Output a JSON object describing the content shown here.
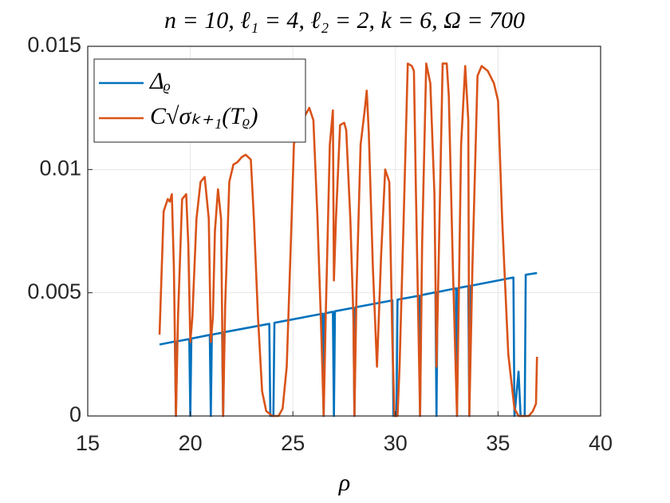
{
  "chart_data": {
    "type": "line",
    "title": "n = 10, ℓ₁ = 4, ℓ₂ = 2, k = 6, Ω = 700",
    "x_label": "ρ",
    "xlim": [
      15,
      40
    ],
    "xticks": [
      15,
      20,
      25,
      30,
      35,
      40
    ],
    "ylim": [
      0,
      0.015
    ],
    "yticks": [
      0,
      0.005,
      0.01,
      0.015
    ],
    "grid": true,
    "legend": "upper left",
    "series": [
      {
        "name": "Δᵨ",
        "color": "#0072BD",
        "x": [
          18.5,
          19.25,
          19.3,
          19.35,
          19.95,
          20.0,
          20.05,
          20.95,
          21.0,
          21.05,
          21.55,
          21.6,
          21.65,
          23.85,
          23.9,
          24.05,
          24.1,
          26.45,
          26.5,
          26.55,
          26.95,
          27.0,
          27.05,
          27.95,
          28.0,
          28.05,
          29.85,
          29.9,
          30.05,
          30.1,
          31.15,
          31.2,
          31.25,
          31.95,
          32.0,
          32.05,
          32.95,
          33.0,
          33.05,
          33.55,
          33.6,
          33.65,
          35.75,
          35.8,
          36.0,
          36.1,
          36.3,
          36.35,
          36.9
        ],
        "values": [
          0.0029,
          0.00302,
          0,
          0.00303,
          0.00312,
          0,
          0.00314,
          0.00329,
          0,
          0.0033,
          0.00338,
          0,
          0.0034,
          0.00374,
          0,
          0,
          0.00378,
          0.00415,
          0,
          0.00416,
          0.00423,
          0,
          0.00425,
          0.00439,
          0,
          0.00441,
          0.00469,
          0,
          0,
          0.00472,
          0.00488,
          0,
          0.0049,
          0.00502,
          0,
          0.00503,
          0.00518,
          0,
          0.00519,
          0.00527,
          0,
          0.00528,
          0.00562,
          0,
          0.0018,
          0,
          0,
          0.00573,
          0.0058
        ]
      },
      {
        "name": "C√σₖ₊₁(Tᵨ)",
        "color": "#D95319",
        "x": [
          18.5,
          18.7,
          18.9,
          19.0,
          19.1,
          19.2,
          19.3,
          19.4,
          19.6,
          19.8,
          19.9,
          20.0,
          20.1,
          20.3,
          20.5,
          20.7,
          20.9,
          21.0,
          21.1,
          21.2,
          21.35,
          21.5,
          21.6,
          21.7,
          21.9,
          22.1,
          22.3,
          22.5,
          22.7,
          22.95,
          23.1,
          23.3,
          23.5,
          23.7,
          24.0,
          24.3,
          24.5,
          24.7,
          24.9,
          25.05,
          25.2,
          25.4,
          25.6,
          25.8,
          26.0,
          26.2,
          26.4,
          26.5,
          26.6,
          26.8,
          26.95,
          27.0,
          27.1,
          27.3,
          27.5,
          27.6,
          27.8,
          27.95,
          28.0,
          28.1,
          28.3,
          28.5,
          28.6,
          28.7,
          28.9,
          29.1,
          29.3,
          29.5,
          29.7,
          29.85,
          29.95,
          30.1,
          30.2,
          30.4,
          30.6,
          30.8,
          30.9,
          31.0,
          31.2,
          31.3,
          31.5,
          31.7,
          31.9,
          32.0,
          32.1,
          32.3,
          32.5,
          32.6,
          32.8,
          33.0,
          33.2,
          33.4,
          33.55,
          33.6,
          33.75,
          34.0,
          34.2,
          34.5,
          34.8,
          35.0,
          35.2,
          35.5,
          35.8,
          36.0,
          36.5,
          36.7,
          36.85,
          36.9
        ],
        "values": [
          0.0033,
          0.0083,
          0.0088,
          0.0087,
          0.009,
          0.006,
          0,
          0.004,
          0.0088,
          0.009,
          0.007,
          0.003,
          0.004,
          0.008,
          0.0095,
          0.0097,
          0.008,
          0.003,
          0.004,
          0.0075,
          0.0092,
          0.008,
          0,
          0.0045,
          0.0095,
          0.0102,
          0.0103,
          0.0105,
          0.0106,
          0.0104,
          0.008,
          0.004,
          0.001,
          0.0002,
          0,
          0,
          0.0003,
          0.002,
          0.007,
          0.011,
          0.0118,
          0.012,
          0.0122,
          0.0125,
          0.012,
          0.008,
          0.003,
          0,
          0.004,
          0.011,
          0.0124,
          0.0055,
          0.008,
          0.0118,
          0.0119,
          0.0116,
          0.008,
          0.004,
          0,
          0.005,
          0.011,
          0.0124,
          0.0132,
          0.0115,
          0.006,
          0.002,
          0.0065,
          0.01,
          0.0095,
          0.003,
          0,
          0,
          0.002,
          0.008,
          0.0143,
          0.0142,
          0.014,
          0.009,
          0,
          0.007,
          0.0143,
          0.0135,
          0.009,
          0.002,
          0.006,
          0.0143,
          0.0143,
          0.013,
          0.006,
          0,
          0.011,
          0.0142,
          0.012,
          0,
          0.006,
          0.0138,
          0.0142,
          0.014,
          0.0135,
          0.0128,
          0.008,
          0.0025,
          0.0003,
          0,
          0,
          0.0002,
          0.0005,
          0.0024
        ]
      }
    ]
  }
}
